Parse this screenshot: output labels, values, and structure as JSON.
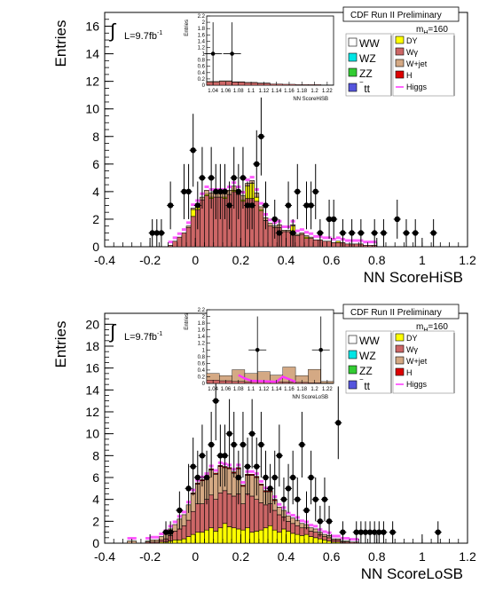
{
  "colors": {
    "WW": "#ffffff",
    "WZ": "#00e5e5",
    "ZZ": "#33cc33",
    "ttbar": "#5555dd",
    "DY": "#ffff00",
    "Wgamma": "#cc6666",
    "Wjet": "#d4a984",
    "H": "#dd0000",
    "Higgs": "#ff33ff",
    "data": "#000000"
  },
  "chart_data": [
    {
      "type": "bar",
      "ylabel": "Entries",
      "xlabel": "NN ScoreHiSB",
      "header": "CDF Run II Preliminary",
      "lumi_prefix": "L=9.7fb",
      "lumi_sup": "-1",
      "mass_label": "m",
      "mass_sub": "H",
      "mass_value": "=160",
      "xlim": [
        -0.4,
        1.2
      ],
      "ylim": [
        0,
        17
      ],
      "yticks": [
        0,
        2,
        4,
        6,
        8,
        10,
        12,
        14,
        16
      ],
      "xticks": [
        "-0.4",
        "-0.2",
        "0",
        "0.2",
        "0.4",
        "0.6",
        "0.8",
        "1",
        "1.2"
      ],
      "legend_left": [
        "WW",
        "WZ",
        "ZZ",
        "tt"
      ],
      "legend_right": [
        "DY",
        "Wγ",
        "W+jet",
        "H",
        "Higgs"
      ],
      "bin_low": -0.3,
      "bin_width": 0.02,
      "stack": {
        "Wgamma": [
          0,
          0,
          0,
          0,
          0,
          0,
          0,
          0,
          0,
          0.1,
          0.4,
          0.7,
          1.0,
          1.4,
          2.2,
          2.7,
          3.4,
          3.7,
          3.5,
          3.6,
          3.6,
          3.5,
          3.8,
          4.0,
          3.8,
          3.3,
          3.5,
          3.5,
          3.3,
          2.6,
          1.9,
          1.5,
          1.4,
          1.4,
          1.1,
          1.1,
          0.9,
          0.8,
          0.9,
          0.6,
          0.6,
          0.5,
          0.5,
          0.4,
          0.4,
          0.3,
          0.3,
          0.3,
          0.2,
          0.2,
          0.2,
          0.2,
          0.1,
          0.1,
          0.1,
          0,
          0,
          0,
          0,
          0,
          0,
          0,
          0,
          0,
          0,
          0,
          0,
          0,
          0
        ],
        "DY": [
          0,
          0,
          0,
          0,
          0,
          0,
          0,
          0,
          0,
          0,
          0,
          0,
          0,
          0,
          0.5,
          0.2,
          0,
          0.1,
          0.1,
          0,
          0,
          0.1,
          0,
          0.1,
          0,
          0.1,
          0.9,
          1.1,
          0.3,
          0.1,
          0,
          0,
          0,
          0,
          0,
          0,
          0.6,
          0,
          0,
          0.1,
          0,
          0,
          0,
          0,
          0,
          0,
          0.1,
          0,
          0,
          0,
          0,
          0,
          0,
          0,
          0,
          0,
          0,
          0,
          0,
          0,
          0,
          0,
          0,
          0,
          0,
          0,
          0,
          0,
          0
        ],
        "Wjet": [
          0,
          0,
          0,
          0,
          0,
          0,
          0,
          0,
          0,
          0,
          0,
          0,
          0,
          0.1,
          0.1,
          0.2,
          0.2,
          0.3,
          0.3,
          0.3,
          0.3,
          0.3,
          0.3,
          0.3,
          0.3,
          0.3,
          0.2,
          0.2,
          0.3,
          0.2,
          0.2,
          0.2,
          0.1,
          0.2,
          0.1,
          0.1,
          0.1,
          0.1,
          0.1,
          0.1,
          0.1,
          0,
          0,
          0,
          0,
          0,
          0,
          0,
          0,
          0,
          0,
          0,
          0,
          0,
          0,
          0,
          0,
          0,
          0,
          0,
          0,
          0,
          0,
          0,
          0,
          0,
          0,
          0,
          0
        ]
      },
      "data_points": [
        {
          "x": -0.19,
          "y": 1
        },
        {
          "x": -0.17,
          "y": 1
        },
        {
          "x": -0.15,
          "y": 1
        },
        {
          "x": -0.11,
          "y": 3
        },
        {
          "x": -0.05,
          "y": 4
        },
        {
          "x": -0.03,
          "y": 4
        },
        {
          "x": -0.01,
          "y": 7
        },
        {
          "x": 0.01,
          "y": 3
        },
        {
          "x": 0.03,
          "y": 5
        },
        {
          "x": 0.07,
          "y": 5
        },
        {
          "x": 0.09,
          "y": 4
        },
        {
          "x": 0.11,
          "y": 4
        },
        {
          "x": 0.13,
          "y": 4
        },
        {
          "x": 0.15,
          "y": 3
        },
        {
          "x": 0.17,
          "y": 5
        },
        {
          "x": 0.19,
          "y": 4
        },
        {
          "x": 0.21,
          "y": 5
        },
        {
          "x": 0.23,
          "y": 3
        },
        {
          "x": 0.25,
          "y": 3
        },
        {
          "x": 0.27,
          "y": 6
        },
        {
          "x": 0.29,
          "y": 8
        },
        {
          "x": 0.31,
          "y": 3
        },
        {
          "x": 0.35,
          "y": 2
        },
        {
          "x": 0.37,
          "y": 1
        },
        {
          "x": 0.41,
          "y": 3
        },
        {
          "x": 0.43,
          "y": 1
        },
        {
          "x": 0.45,
          "y": 4
        },
        {
          "x": 0.49,
          "y": 3
        },
        {
          "x": 0.51,
          "y": 3
        },
        {
          "x": 0.53,
          "y": 4
        },
        {
          "x": 0.55,
          "y": 1
        },
        {
          "x": 0.59,
          "y": 2
        },
        {
          "x": 0.61,
          "y": 2
        },
        {
          "x": 0.65,
          "y": 1
        },
        {
          "x": 0.69,
          "y": 1
        },
        {
          "x": 0.73,
          "y": 1
        },
        {
          "x": 0.79,
          "y": 1
        },
        {
          "x": 0.83,
          "y": 1
        },
        {
          "x": 0.89,
          "y": 2
        },
        {
          "x": 0.93,
          "y": 1
        },
        {
          "x": 0.97,
          "y": 1
        },
        {
          "x": 1.05,
          "y": 1
        }
      ],
      "inset": {
        "xlabel": "NN ScoreHiSB",
        "ylabel": "Entries",
        "ylim": [
          0,
          2.2
        ],
        "yticks": [
          "0",
          "0.2",
          "0.4",
          "0.6",
          "0.8",
          "1",
          "1.2",
          "1.4",
          "1.6",
          "1.8",
          "2",
          "2.2"
        ],
        "xticks": [
          "1.04",
          "1.06",
          "1.08",
          "1.1",
          "1.12",
          "1.14",
          "1.16",
          "1.18",
          "1.2",
          "1.22"
        ],
        "xlim": [
          1.03,
          1.23
        ],
        "stack_x": [
          1.03,
          1.05,
          1.07,
          1.09,
          1.11,
          1.13,
          1.15,
          1.17,
          1.19,
          1.21
        ],
        "stack_Wgamma": [
          0.1,
          0.12,
          0.1,
          0.08,
          0.06,
          0.04,
          0.03,
          0.02,
          0.02,
          0.01
        ],
        "stack_Wjet": [
          0.02,
          0.02,
          0.01,
          0.01,
          0.01,
          0,
          0,
          0,
          0,
          0
        ],
        "data_points": [
          {
            "x": 1.04,
            "y": 1
          },
          {
            "x": 1.07,
            "y": 1
          }
        ]
      }
    },
    {
      "type": "bar",
      "ylabel": "Entries",
      "xlabel": "NN ScoreLoSB",
      "header": "CDF Run II Preliminary",
      "lumi_prefix": "L=9.7fb",
      "lumi_sup": "-1",
      "mass_label": "m",
      "mass_sub": "H",
      "mass_value": "=160",
      "xlim": [
        -0.4,
        1.2
      ],
      "ylim": [
        0,
        21
      ],
      "yticks": [
        0,
        2,
        4,
        6,
        8,
        10,
        12,
        14,
        16,
        18,
        20
      ],
      "xticks": [
        "-0.4",
        "-0.2",
        "0",
        "0.2",
        "0.4",
        "0.6",
        "0.8",
        "1",
        "1.2"
      ],
      "legend_left": [
        "WW",
        "WZ",
        "ZZ",
        "tt"
      ],
      "legend_right": [
        "DY",
        "Wγ",
        "W+jet",
        "H",
        "Higgs"
      ],
      "bin_low": -0.38,
      "bin_width": 0.02,
      "stack": {
        "DY": [
          0,
          0,
          0,
          0,
          0,
          0,
          0,
          0,
          0,
          0,
          0,
          0.1,
          0.1,
          0.2,
          0.3,
          0.3,
          0.4,
          0.6,
          0.8,
          1.0,
          1.0,
          1.2,
          1.4,
          1.1,
          1.4,
          1.8,
          1.5,
          1.4,
          1.3,
          1.2,
          1.4,
          1.0,
          1.1,
          1.2,
          1.4,
          1.6,
          1.2,
          1.0,
          1.3,
          1.1,
          0.9,
          0.8,
          0.7,
          0.8,
          0.6,
          0.5,
          0.4,
          0.3,
          0.2,
          0.1,
          0.1,
          0,
          0,
          0,
          0,
          0,
          0,
          0,
          0,
          0,
          0,
          0,
          0,
          0,
          0,
          0,
          0,
          0,
          0,
          0,
          0,
          0,
          0,
          0,
          0,
          0,
          0,
          0,
          0
        ],
        "Wgamma": [
          0,
          0,
          0,
          0,
          0,
          0,
          0,
          0,
          0.1,
          0.1,
          0.1,
          0.2,
          0.3,
          0.5,
          0.8,
          1.0,
          1.2,
          1.5,
          2.1,
          2.6,
          2.6,
          2.8,
          3.0,
          2.9,
          3.2,
          3.0,
          3.0,
          2.9,
          3.2,
          2.4,
          3.1,
          3.3,
          2.9,
          2.5,
          2.1,
          2.0,
          1.8,
          1.6,
          1.1,
          0.9,
          0.9,
          0.8,
          0.7,
          0.6,
          0.5,
          0.5,
          0.4,
          0.3,
          0.3,
          0.2,
          0.2,
          0.1,
          0.1,
          0.1,
          0.1,
          0,
          0,
          0,
          0,
          0,
          0,
          0,
          0,
          0,
          0,
          0,
          0,
          0,
          0,
          0,
          0,
          0,
          0,
          0,
          0,
          0,
          0,
          0,
          0
        ],
        "Wjet": [
          0,
          0,
          0,
          0,
          0.2,
          0.2,
          0,
          0,
          0.1,
          0.2,
          0.2,
          0.3,
          0.5,
          0.6,
          0.6,
          0.9,
          1.0,
          1.4,
          1.6,
          1.8,
          2.1,
          2.0,
          2.3,
          2.3,
          2.4,
          2.1,
          2.3,
          2.1,
          2.3,
          1.6,
          1.7,
          1.9,
          2.0,
          1.6,
          1.2,
          1.1,
          0.9,
          0.7,
          0.6,
          0.5,
          0.5,
          0.5,
          0.4,
          0.3,
          0.3,
          0.3,
          0.2,
          0.2,
          0.2,
          0.1,
          0.1,
          0.1,
          0.1,
          0,
          0,
          0,
          0,
          0,
          0,
          0,
          0,
          0,
          0,
          0,
          0,
          0,
          0,
          0,
          0,
          0,
          0,
          0,
          0,
          0,
          0,
          0,
          0,
          0,
          0
        ],
        "H": [
          0,
          0,
          0,
          0,
          0,
          0,
          0,
          0,
          0,
          0,
          0,
          0,
          0,
          0,
          0,
          0,
          0,
          0,
          0.1,
          0.1,
          0.1,
          0.1,
          0.1,
          0.1,
          0.1,
          0.1,
          0.1,
          0.1,
          0.1,
          0.1,
          0.1,
          0.1,
          0.1,
          0.1,
          0.1,
          0.1,
          0.1,
          0,
          0,
          0,
          0,
          0,
          0,
          0,
          0,
          0,
          0,
          0,
          0,
          0,
          0,
          0,
          0,
          0,
          0,
          0,
          0,
          0,
          0,
          0,
          0,
          0,
          0,
          0,
          0,
          0,
          0,
          0,
          0,
          0,
          0,
          0,
          0,
          0,
          0,
          0,
          0,
          0,
          0
        ]
      },
      "data_points": [
        {
          "x": -0.13,
          "y": 1
        },
        {
          "x": -0.11,
          "y": 1
        },
        {
          "x": -0.07,
          "y": 3
        },
        {
          "x": -0.03,
          "y": 5
        },
        {
          "x": -0.01,
          "y": 7
        },
        {
          "x": 0.01,
          "y": 6
        },
        {
          "x": 0.03,
          "y": 8
        },
        {
          "x": 0.05,
          "y": 6
        },
        {
          "x": 0.07,
          "y": 9
        },
        {
          "x": 0.09,
          "y": 13
        },
        {
          "x": 0.11,
          "y": 8
        },
        {
          "x": 0.13,
          "y": 8
        },
        {
          "x": 0.15,
          "y": 10
        },
        {
          "x": 0.17,
          "y": 9
        },
        {
          "x": 0.19,
          "y": 6
        },
        {
          "x": 0.21,
          "y": 9
        },
        {
          "x": 0.23,
          "y": 7
        },
        {
          "x": 0.25,
          "y": 10
        },
        {
          "x": 0.27,
          "y": 7
        },
        {
          "x": 0.29,
          "y": 9
        },
        {
          "x": 0.31,
          "y": 6
        },
        {
          "x": 0.33,
          "y": 5
        },
        {
          "x": 0.35,
          "y": 6
        },
        {
          "x": 0.37,
          "y": 8
        },
        {
          "x": 0.39,
          "y": 4
        },
        {
          "x": 0.41,
          "y": 5
        },
        {
          "x": 0.43,
          "y": 6
        },
        {
          "x": 0.45,
          "y": 4
        },
        {
          "x": 0.47,
          "y": 9
        },
        {
          "x": 0.49,
          "y": 3
        },
        {
          "x": 0.51,
          "y": 6
        },
        {
          "x": 0.53,
          "y": 4
        },
        {
          "x": 0.55,
          "y": 2
        },
        {
          "x": 0.57,
          "y": 4
        },
        {
          "x": 0.59,
          "y": 2
        },
        {
          "x": 0.63,
          "y": 11
        },
        {
          "x": 0.65,
          "y": 1
        },
        {
          "x": 0.71,
          "y": 1
        },
        {
          "x": 0.73,
          "y": 1
        },
        {
          "x": 0.75,
          "y": 1
        },
        {
          "x": 0.77,
          "y": 1
        },
        {
          "x": 0.79,
          "y": 1
        },
        {
          "x": 0.81,
          "y": 1
        },
        {
          "x": 0.83,
          "y": 1
        },
        {
          "x": 0.87,
          "y": 1
        },
        {
          "x": 1.07,
          "y": 1
        }
      ],
      "inset": {
        "xlabel": "NN ScoreLoSB",
        "ylabel": "Entries",
        "ylim": [
          0,
          2.2
        ],
        "yticks": [
          "0",
          "0.2",
          "0.4",
          "0.6",
          "0.8",
          "1",
          "1.2",
          "1.4",
          "1.6",
          "1.8",
          "2",
          "2.2"
        ],
        "xticks": [
          "1.04",
          "1.06",
          "1.08",
          "1.1",
          "1.12",
          "1.14",
          "1.16",
          "1.18",
          "1.2",
          "1.22"
        ],
        "xlim": [
          1.03,
          1.23
        ],
        "stack_x": [
          1.03,
          1.05,
          1.07,
          1.09,
          1.11,
          1.13,
          1.15,
          1.17,
          1.19,
          1.21
        ],
        "stack_Wgamma": [
          0.1,
          0.08,
          0.06,
          0.05,
          0.05,
          0.05,
          0.04,
          0.03,
          0.02,
          0.01
        ],
        "stack_Wjet": [
          0.2,
          0.15,
          0.35,
          0.25,
          0.3,
          0.2,
          0.45,
          0.2,
          0.4,
          0.05
        ],
        "higgs_line": [
          {
            "x": 1.08,
            "y": 0.25
          },
          {
            "x": 1.09,
            "y": 0.15
          },
          {
            "x": 1.1,
            "y": 0.08
          },
          {
            "x": 1.14,
            "y": 0.05
          },
          {
            "x": 1.15,
            "y": 0.2
          },
          {
            "x": 1.17,
            "y": 0.05
          }
        ],
        "data_points": [
          {
            "x": 1.11,
            "y": 1
          },
          {
            "x": 1.21,
            "y": 1
          }
        ]
      }
    }
  ]
}
